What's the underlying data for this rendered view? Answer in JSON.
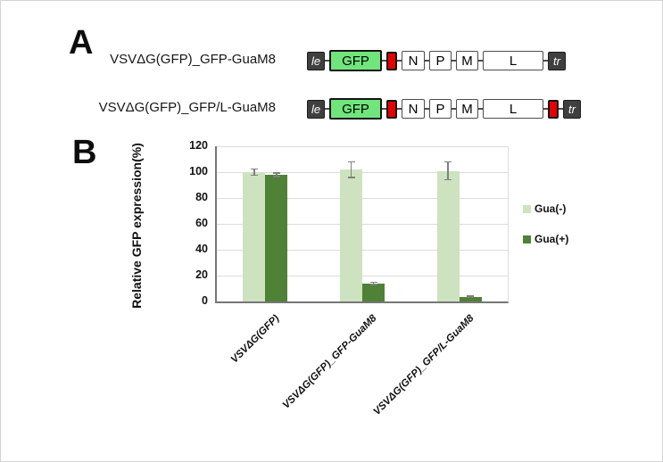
{
  "figure": {
    "panelA": {
      "label": "A",
      "colors": {
        "gfp": "#70e57b",
        "marker": "#e60000",
        "terminal_bg": "#3f3f3f",
        "terminal_text": "#ffffff",
        "connector": "#4d4d4d"
      },
      "constructs": [
        {
          "name": "VSVΔG(GFP)_GFP-GuaM8",
          "genes": [
            {
              "text": "le",
              "type": "terminal"
            },
            {
              "text": "GFP",
              "type": "gfp"
            },
            {
              "text": "",
              "type": "marker"
            },
            {
              "text": "N",
              "type": "gene"
            },
            {
              "text": "P",
              "type": "gene"
            },
            {
              "text": "M",
              "type": "gene"
            },
            {
              "text": "L",
              "type": "gene"
            },
            {
              "text": "tr",
              "type": "terminal"
            }
          ]
        },
        {
          "name": "VSVΔG(GFP)_GFP/L-GuaM8",
          "genes": [
            {
              "text": "le",
              "type": "terminal"
            },
            {
              "text": "GFP",
              "type": "gfp"
            },
            {
              "text": "",
              "type": "marker"
            },
            {
              "text": "N",
              "type": "gene"
            },
            {
              "text": "P",
              "type": "gene"
            },
            {
              "text": "M",
              "type": "gene"
            },
            {
              "text": "L",
              "type": "gene"
            },
            {
              "text": "",
              "type": "marker"
            },
            {
              "text": "tr",
              "type": "terminal"
            }
          ]
        }
      ]
    },
    "panelB": {
      "label": "B"
    }
  },
  "chart_data": {
    "type": "bar",
    "title": "",
    "xlabel": "",
    "ylabel": "Relative GFP expression(%)",
    "ylim": [
      0,
      120
    ],
    "yticks": [
      0,
      20,
      40,
      60,
      80,
      100,
      120
    ],
    "grid": true,
    "legend_position": "right",
    "categories": [
      "VSVΔG(GFP)",
      "VSVΔG(GFP)_GFP-GuaM8",
      "VSVΔG(GFP)_GFP/L-GuaM8"
    ],
    "series": [
      {
        "name": "Gua(-)",
        "color": "#cde3bf",
        "values": [
          100,
          102,
          101
        ],
        "errors": [
          3,
          6.5,
          7.5
        ]
      },
      {
        "name": "Gua(+)",
        "color": "#4f8136",
        "values": [
          98,
          14,
          3.5
        ],
        "errors": [
          2,
          1.5,
          1
        ]
      }
    ],
    "error_bar_color": "#7f7f7f",
    "axis_color": "#767676",
    "grid_color": "#dcdcdc"
  }
}
